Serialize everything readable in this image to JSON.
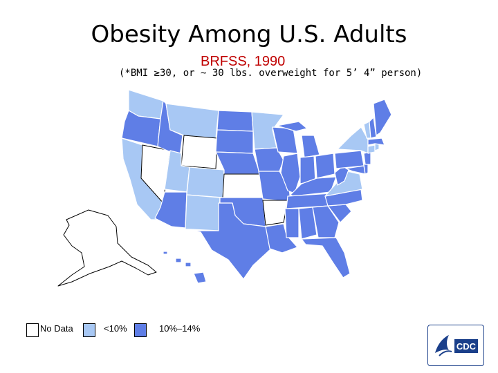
{
  "title": "Obesity Among U.S. Adults",
  "subtitle": "BRFSS, 1990",
  "note": "(*BMI ≥30, or ~ 30 lbs. overweight for 5’ 4” person)",
  "colors": {
    "no_data": "#ffffff",
    "lt10": "#a8c8f4",
    "r10_14": "#5f7ee6",
    "border": "#ffffff",
    "outline": "#000000"
  },
  "legend": [
    {
      "label": "No Data",
      "category": "no_data"
    },
    {
      "label": "<10%",
      "category": "lt10"
    },
    {
      "label": "10%–14%",
      "category": "r10_14"
    }
  ],
  "states": {
    "WA": "lt10",
    "OR": "r10_14",
    "CA": "lt10",
    "NV": "no_data",
    "ID": "r10_14",
    "MT": "lt10",
    "WY": "no_data",
    "UT": "lt10",
    "AZ": "r10_14",
    "CO": "lt10",
    "NM": "lt10",
    "ND": "r10_14",
    "SD": "r10_14",
    "NE": "r10_14",
    "KS": "no_data",
    "OK": "r10_14",
    "TX": "r10_14",
    "MN": "lt10",
    "IA": "r10_14",
    "MO": "r10_14",
    "AR": "no_data",
    "LA": "r10_14",
    "WI": "r10_14",
    "IL": "r10_14",
    "MS": "r10_14",
    "MI": "r10_14",
    "IN": "r10_14",
    "KY": "r10_14",
    "TN": "r10_14",
    "AL": "r10_14",
    "OH": "r10_14",
    "GA": "r10_14",
    "FL": "r10_14",
    "SC": "r10_14",
    "NC": "r10_14",
    "VA": "lt10",
    "WV": "r10_14",
    "PA": "r10_14",
    "NY": "lt10",
    "MD": "r10_14",
    "DE": "r10_14",
    "NJ": "r10_14",
    "CT": "lt10",
    "RI": "lt10",
    "MA": "r10_14",
    "VT": "lt10",
    "NH": "r10_14",
    "ME": "r10_14",
    "AK": "no_data",
    "HI": "r10_14"
  },
  "logo": {
    "text": "CDC"
  }
}
